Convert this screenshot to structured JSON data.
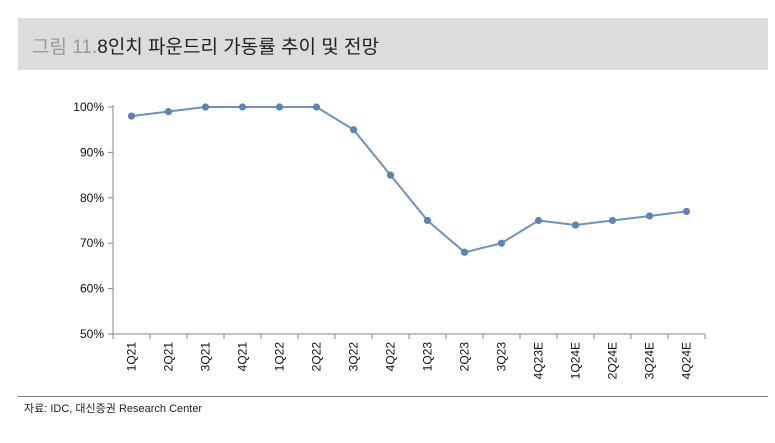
{
  "header": {
    "label": "그림 11.",
    "title": "8인치 파운드리 가동률 추이 및 전망"
  },
  "source": "자료: IDC, 대신증권 Research Center",
  "colors": {
    "line": "#6b93bf",
    "marker": "#5a84b4",
    "axis": "#888888",
    "header_bg": "#dcdcdc"
  },
  "chart_data": {
    "type": "line",
    "title": "8인치 파운드리 가동률 추이 및 전망",
    "categories": [
      "1Q21",
      "2Q21",
      "3Q21",
      "4Q21",
      "1Q22",
      "2Q22",
      "3Q22",
      "4Q22",
      "1Q23",
      "2Q23",
      "3Q23",
      "4Q23E",
      "1Q24E",
      "2Q24E",
      "3Q24E",
      "4Q24E"
    ],
    "series": [
      {
        "values": [
          98,
          99,
          100,
          100,
          100,
          100,
          95,
          85,
          75,
          68,
          70,
          75,
          74,
          75,
          76,
          77
        ]
      }
    ],
    "y_ticks": [
      "100%",
      "90%",
      "80%",
      "70%",
      "60%",
      "50%"
    ],
    "ylim": [
      50,
      100
    ],
    "grid": false,
    "legend": "none"
  }
}
